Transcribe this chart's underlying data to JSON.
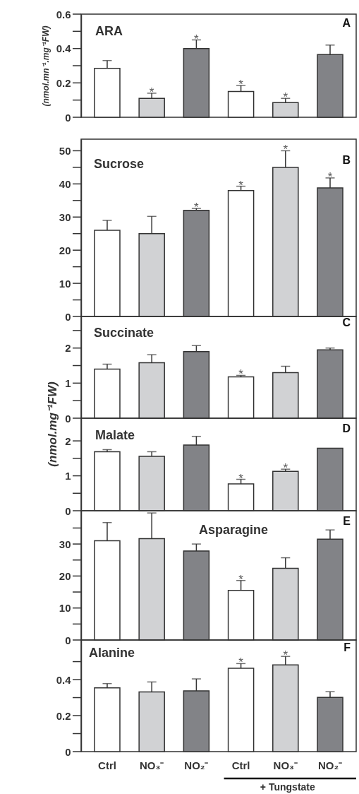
{
  "chart_data": [
    {
      "type": "bar",
      "title": "ARA",
      "ylabel": "(nmol.mn⁻¹.mg⁻¹FW)",
      "annotations": [
        "A"
      ],
      "categories": [
        null,
        null,
        null,
        null,
        null,
        null
      ],
      "values": [
        0.285,
        0.11,
        0.4,
        0.15,
        0.085,
        0.365
      ],
      "colors": [
        "#ffffff",
        "#d1d2d4",
        "#828387",
        "#ffffff",
        "#d1d2d4",
        "#828387"
      ],
      "errors": [
        [
          0.285,
          0.33
        ],
        [
          0.11,
          0.14
        ],
        [
          0.4,
          0.45
        ],
        [
          0.15,
          0.185
        ],
        [
          0.085,
          0.11
        ],
        [
          0.365,
          0.42
        ]
      ],
      "value_labels": [
        null,
        "*",
        "*",
        "*",
        "*",
        null
      ],
      "ylim": [
        0,
        0.6
      ],
      "yticks": [
        0,
        {
          "value": 0.1,
          "label": null
        },
        0.2,
        {
          "value": 0.3,
          "label": null
        },
        0.4,
        {
          "value": 0.5,
          "label": null
        },
        0.6
      ],
      "tick_labels": "y"
    },
    {
      "type": "bar",
      "title": "Sucrose",
      "annotations": [
        "B"
      ],
      "categories": [
        null,
        null,
        null,
        null,
        null,
        null
      ],
      "values": [
        26,
        25,
        32,
        38,
        45,
        38.8
      ],
      "colors": [
        "#ffffff",
        "#d1d2d4",
        "#828387",
        "#ffffff",
        "#d1d2d4",
        "#828387"
      ],
      "errors": [
        [
          26,
          29
        ],
        [
          25,
          30.2
        ],
        [
          32,
          32.6
        ],
        [
          38,
          39.3
        ],
        [
          45,
          50
        ],
        [
          38.8,
          41.8
        ]
      ],
      "value_labels": [
        null,
        null,
        "*",
        "*",
        "*",
        "*"
      ],
      "ylim": [
        0,
        53.5
      ],
      "yticks": [
        0,
        {
          "value": 5,
          "label": null
        },
        10,
        {
          "value": 15,
          "label": null
        },
        20,
        {
          "value": 25,
          "label": null
        },
        30,
        {
          "value": 35,
          "label": null
        },
        40,
        {
          "value": 45,
          "label": null
        },
        50
      ],
      "tick_labels": "y"
    },
    {
      "type": "bar",
      "title": "Succinate",
      "annotations": [
        "C"
      ],
      "categories": [
        null,
        null,
        null,
        null,
        null,
        null
      ],
      "values": [
        1.4,
        1.58,
        1.9,
        1.18,
        1.3,
        1.95
      ],
      "colors": [
        "#ffffff",
        "#d1d2d4",
        "#828387",
        "#ffffff",
        "#d1d2d4",
        "#828387"
      ],
      "errors": [
        [
          1.4,
          1.54
        ],
        [
          1.58,
          1.81
        ],
        [
          1.9,
          2.07
        ],
        [
          1.18,
          1.22
        ],
        [
          1.3,
          1.48
        ],
        [
          1.95,
          2.0
        ]
      ],
      "value_labels": [
        null,
        null,
        null,
        "*",
        null,
        null
      ],
      "ylim": [
        0,
        2.9
      ],
      "yticks": [
        0,
        {
          "value": 0.5,
          "label": null
        },
        1,
        {
          "value": 1.5,
          "label": null
        },
        2,
        {
          "value": 2.5,
          "label": null
        }
      ],
      "tick_labels": "y"
    },
    {
      "type": "bar",
      "title": "Malate",
      "ylabel": "(nmol.mg⁻¹FW)",
      "annotations": [
        "D"
      ],
      "categories": [
        null,
        null,
        null,
        null,
        null,
        null
      ],
      "values": [
        1.69,
        1.56,
        1.88,
        0.77,
        1.13,
        1.79
      ],
      "colors": [
        "#ffffff",
        "#d1d2d4",
        "#828387",
        "#ffffff",
        "#d1d2d4",
        "#828387"
      ],
      "errors": [
        [
          1.69,
          1.75
        ],
        [
          1.56,
          1.69
        ],
        [
          1.88,
          2.13
        ],
        [
          0.77,
          0.9
        ],
        [
          1.13,
          1.19
        ],
        null
      ],
      "value_labels": [
        null,
        null,
        null,
        "*",
        "*",
        null
      ],
      "ylim": [
        0,
        2.65
      ],
      "yticks": [
        0,
        {
          "value": 0.5,
          "label": null
        },
        1,
        {
          "value": 1.5,
          "label": null
        },
        2
      ],
      "tick_labels": "y"
    },
    {
      "type": "bar",
      "title": "Asparagine",
      "annotations": [
        "E"
      ],
      "categories": [
        null,
        null,
        null,
        null,
        null,
        null
      ],
      "values": [
        31,
        31.7,
        27.8,
        15.5,
        22.4,
        31.5
      ],
      "colors": [
        "#ffffff",
        "#d1d2d4",
        "#828387",
        "#ffffff",
        "#d1d2d4",
        "#828387"
      ],
      "errors": [
        [
          31,
          36.7
        ],
        [
          31.7,
          39.7
        ],
        [
          27.8,
          30
        ],
        [
          15.5,
          18.6
        ],
        [
          22.4,
          25.7
        ],
        [
          31.5,
          34.4
        ]
      ],
      "value_labels": [
        null,
        null,
        null,
        "*",
        null,
        null
      ],
      "ylim": [
        0,
        40.4
      ],
      "yticks": [
        0,
        {
          "value": 5,
          "label": null
        },
        10,
        {
          "value": 15,
          "label": null
        },
        20,
        {
          "value": 25,
          "label": null
        },
        30,
        {
          "value": 35,
          "label": null
        }
      ],
      "tick_labels": "y"
    },
    {
      "type": "bar",
      "title": "Alanine",
      "annotations": [
        "F",
        "+ Tungstate"
      ],
      "categories": [
        "Ctrl",
        "NO₃⁻",
        "NO₂⁻",
        "Ctrl",
        "NO₃⁻",
        "NO₂⁻"
      ],
      "values": [
        0.354,
        0.332,
        0.337,
        0.463,
        0.482,
        0.301
      ],
      "colors": [
        "#ffffff",
        "#d1d2d4",
        "#828387",
        "#ffffff",
        "#d1d2d4",
        "#828387"
      ],
      "errors": [
        [
          0.354,
          0.378
        ],
        [
          0.332,
          0.387
        ],
        [
          0.337,
          0.404
        ],
        [
          0.463,
          0.489
        ],
        [
          0.482,
          0.529
        ],
        [
          0.301,
          0.333
        ]
      ],
      "value_labels": [
        null,
        null,
        null,
        "*",
        "*",
        null
      ],
      "ylim": [
        0,
        0.62
      ],
      "yticks": [
        0,
        {
          "value": 0.1,
          "label": null
        },
        0.2,
        {
          "value": 0.3,
          "label": null
        },
        0.4,
        {
          "value": 0.5,
          "label": null
        }
      ]
    }
  ]
}
